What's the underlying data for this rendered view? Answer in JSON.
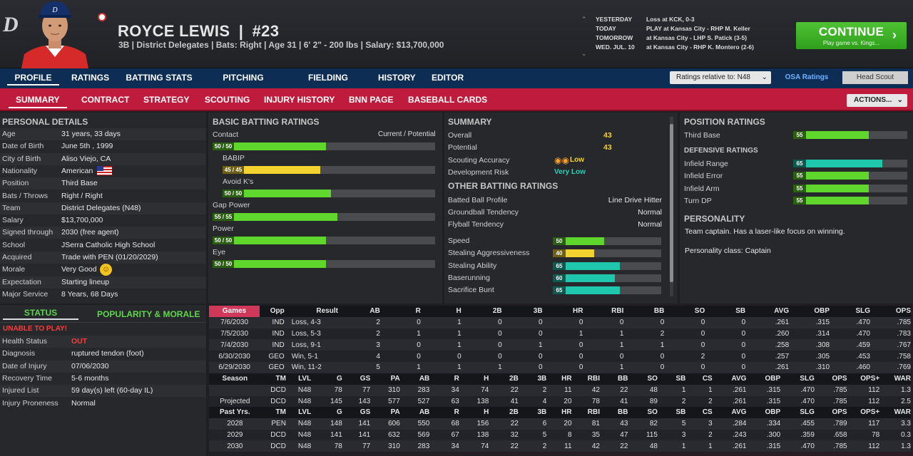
{
  "header": {
    "logo": "D",
    "name": "ROYCE LEWIS",
    "sep": "|",
    "number": "#23",
    "info": "3B | District Delegates  |  Bats: Right  |  Age 31  |  6' 2\" - 200 lbs  |  Salary: $13,700,000"
  },
  "schedule": [
    {
      "day": "YESTERDAY",
      "event": "Loss at KCK, 0-3"
    },
    {
      "day": "TODAY",
      "event": "PLAY at Kansas City - RHP M. Keller"
    },
    {
      "day": "TOMORROW",
      "event": "at Kansas City - LHP S. Patick (3-5)"
    },
    {
      "day": "WED. JUL. 10",
      "event": "at Kansas City - RHP K. Montero (2-6)"
    }
  ],
  "continue": {
    "label": "CONTINUE",
    "sub": "Play game vs. Kings..."
  },
  "nav1": [
    "PROFILE",
    "RATINGS",
    "BATTING STATS",
    "PITCHING STATS",
    "FIELDING STATS",
    "HISTORY",
    "EDITOR"
  ],
  "ratings_select": "Ratings relative to: N48",
  "osa": "OSA Ratings",
  "head_scout": "Head Scout",
  "nav2": [
    "SUMMARY",
    "CONTRACT",
    "STRATEGY",
    "SCOUTING",
    "INJURY HISTORY",
    "BNN PAGE",
    "BASEBALL CARDS"
  ],
  "actions": "ACTIONS...",
  "personal": {
    "title": "PERSONAL DETAILS",
    "rows": [
      [
        "Age",
        "31 years, 33 days"
      ],
      [
        "Date of Birth",
        "June 5th , 1999"
      ],
      [
        "City of Birth",
        "Aliso Viejo, CA"
      ],
      [
        "Nationality",
        "American"
      ],
      [
        "Position",
        "Third Base"
      ],
      [
        "Bats / Throws",
        "Right / Right"
      ],
      [
        "Team",
        "District Delegates (N48)"
      ],
      [
        "Salary",
        "$13,700,000"
      ],
      [
        "Signed through",
        "2030 (free agent)"
      ],
      [
        "School",
        "JSerra Catholic High School"
      ],
      [
        "Acquired",
        "Trade with PEN (01/20/2029)"
      ],
      [
        "Morale",
        "Very Good"
      ],
      [
        "Expectation",
        "Starting lineup"
      ],
      [
        "Major Service",
        "8 Years, 68 Days"
      ]
    ]
  },
  "status_tabs": [
    "STATUS",
    "POPULARITY & MORALE"
  ],
  "status": {
    "alert": "UNABLE TO PLAY!",
    "rows": [
      [
        "Health Status",
        "OUT"
      ],
      [
        "Diagnosis",
        "ruptured tendon (foot)"
      ],
      [
        "Date of Injury",
        "07/06/2030"
      ],
      [
        "Recovery Time",
        "5-6 months"
      ],
      [
        "Injured List",
        "59 day(s) left (60-day IL)"
      ],
      [
        "Injury Proneness",
        "Normal"
      ]
    ]
  },
  "batting": {
    "title": "BASIC BATTING RATINGS",
    "legend": "Current / Potential",
    "rows": [
      {
        "label": "Contact",
        "value": "50 / 50",
        "level": 0.5,
        "indent": false,
        "color": "#5fd62c"
      },
      {
        "label": "BABIP",
        "value": "45 / 45",
        "level": 0.45,
        "indent": true,
        "color": "#f2d22e"
      },
      {
        "label": "Avoid K's",
        "value": "50 / 50",
        "level": 0.5,
        "indent": true,
        "color": "#5fd62c"
      },
      {
        "label": "Gap Power",
        "value": "55 / 55",
        "level": 0.55,
        "indent": false,
        "color": "#5fd62c"
      },
      {
        "label": "Power",
        "value": "50 / 50",
        "level": 0.5,
        "indent": false,
        "color": "#5fd62c"
      },
      {
        "label": "Eye",
        "value": "50 / 50",
        "level": 0.5,
        "indent": false,
        "color": "#5fd62c"
      }
    ]
  },
  "summary": {
    "title": "SUMMARY",
    "overall_label": "Overall",
    "overall": "43",
    "potential_label": "Potential",
    "potential": "43",
    "scout_label": "Scouting Accuracy",
    "scout": "Low",
    "risk_label": "Development Risk",
    "risk": "Very Low",
    "other_title": "OTHER BATTING RATINGS",
    "text_rows": [
      [
        "Batted Ball Profile",
        "Line Drive Hitter"
      ],
      [
        "Groundball Tendency",
        "Normal"
      ],
      [
        "Flyball Tendency",
        "Normal"
      ]
    ],
    "bar_rows": [
      {
        "label": "Speed",
        "value": "50",
        "level": 0.5,
        "color": "#5fd62c"
      },
      {
        "label": "Stealing Aggressiveness",
        "value": "40",
        "level": 0.4,
        "color": "#f2d22e"
      },
      {
        "label": "Stealing Ability",
        "value": "65",
        "level": 0.65,
        "color": "#1fc8ad"
      },
      {
        "label": "Baserunning",
        "value": "60",
        "level": 0.6,
        "color": "#1fc8ad"
      },
      {
        "label": "Sacrifice Bunt",
        "value": "65",
        "level": 0.65,
        "color": "#1fc8ad"
      }
    ]
  },
  "position": {
    "title": "POSITION RATINGS",
    "main": {
      "label": "Third Base",
      "value": "55",
      "level": 0.55,
      "color": "#5fd62c"
    },
    "def_title": "DEFENSIVE RATINGS",
    "rows": [
      {
        "label": "Infield Range",
        "value": "65",
        "level": 0.65,
        "color": "#1fc8ad"
      },
      {
        "label": "Infield Error",
        "value": "55",
        "level": 0.55,
        "color": "#5fd62c"
      },
      {
        "label": "Infield Arm",
        "value": "55",
        "level": 0.55,
        "color": "#5fd62c"
      },
      {
        "label": "Turn DP",
        "value": "55",
        "level": 0.55,
        "color": "#5fd62c"
      }
    ],
    "personality_title": "PERSONALITY",
    "personality_text": "Team captain. Has a laser-like focus on winning.",
    "personality_class": "Personality class: Captain"
  },
  "games": {
    "headers": [
      "Games",
      "Opp",
      "Result",
      "AB",
      "R",
      "H",
      "2B",
      "3B",
      "HR",
      "RBI",
      "BB",
      "SO",
      "SB",
      "AVG",
      "OBP",
      "SLG",
      "OPS"
    ],
    "rows": [
      [
        "7/6/2030",
        "IND",
        "Loss, 4-3",
        "2",
        "0",
        "1",
        "0",
        "0",
        "0",
        "0",
        "0",
        "0",
        "0",
        ".261",
        ".315",
        ".470",
        ".785"
      ],
      [
        "7/5/2030",
        "IND",
        "Loss, 5-3",
        "2",
        "1",
        "1",
        "0",
        "0",
        "1",
        "1",
        "2",
        "0",
        "0",
        ".260",
        ".314",
        ".470",
        ".783"
      ],
      [
        "7/4/2030",
        "IND",
        "Loss, 9-1",
        "3",
        "0",
        "1",
        "0",
        "1",
        "0",
        "1",
        "1",
        "0",
        "0",
        ".258",
        ".308",
        ".459",
        ".767"
      ],
      [
        "6/30/2030",
        "GEO",
        "Win, 5-1",
        "4",
        "0",
        "0",
        "0",
        "0",
        "0",
        "0",
        "0",
        "2",
        "0",
        ".257",
        ".305",
        ".453",
        ".758"
      ],
      [
        "6/29/2030",
        "GEO",
        "Win, 11-2",
        "5",
        "1",
        "1",
        "1",
        "0",
        "0",
        "1",
        "0",
        "0",
        "0",
        ".261",
        ".310",
        ".460",
        ".769"
      ]
    ]
  },
  "season": {
    "headers": [
      "Season",
      "TM",
      "LVL",
      "G",
      "GS",
      "PA",
      "AB",
      "R",
      "H",
      "2B",
      "3B",
      "HR",
      "RBI",
      "BB",
      "SO",
      "SB",
      "CS",
      "AVG",
      "OBP",
      "SLG",
      "OPS",
      "OPS+",
      "WAR"
    ],
    "rows": [
      [
        "",
        "DCD",
        "N48",
        "78",
        "77",
        "310",
        "283",
        "34",
        "74",
        "22",
        "2",
        "11",
        "42",
        "22",
        "48",
        "1",
        "1",
        ".261",
        ".315",
        ".470",
        ".785",
        "112",
        "1.3"
      ],
      [
        "Projected",
        "DCD",
        "N48",
        "145",
        "143",
        "577",
        "527",
        "63",
        "138",
        "41",
        "4",
        "20",
        "78",
        "41",
        "89",
        "2",
        "2",
        ".261",
        ".315",
        ".470",
        ".785",
        "112",
        "2.5"
      ]
    ]
  },
  "past": {
    "headers": [
      "Past Yrs.",
      "TM",
      "LVL",
      "G",
      "GS",
      "PA",
      "AB",
      "R",
      "H",
      "2B",
      "3B",
      "HR",
      "RBI",
      "BB",
      "SO",
      "SB",
      "CS",
      "AVG",
      "OBP",
      "SLG",
      "OPS",
      "OPS+",
      "WAR"
    ],
    "rows": [
      [
        "2028",
        "PEN",
        "N48",
        "148",
        "141",
        "606",
        "550",
        "68",
        "156",
        "22",
        "6",
        "20",
        "81",
        "43",
        "82",
        "5",
        "3",
        ".284",
        ".334",
        ".455",
        ".789",
        "117",
        "3.3"
      ],
      [
        "2029",
        "DCD",
        "N48",
        "141",
        "141",
        "632",
        "569",
        "67",
        "138",
        "32",
        "5",
        "8",
        "35",
        "47",
        "115",
        "3",
        "2",
        ".243",
        ".300",
        ".359",
        ".658",
        "78",
        "0.3"
      ],
      [
        "2030",
        "DCD",
        "N48",
        "78",
        "77",
        "310",
        "283",
        "34",
        "74",
        "22",
        "2",
        "11",
        "42",
        "22",
        "48",
        "1",
        "1",
        ".261",
        ".315",
        ".470",
        ".785",
        "112",
        "1.3"
      ]
    ]
  }
}
